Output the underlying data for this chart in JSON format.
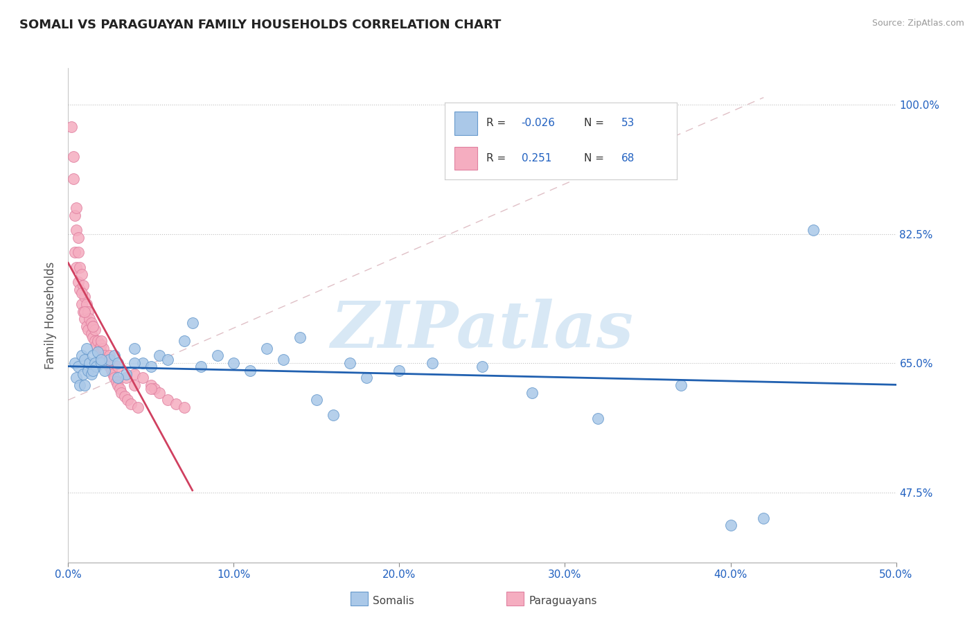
{
  "title": "SOMALI VS PARAGUAYAN FAMILY HOUSEHOLDS CORRELATION CHART",
  "source": "Source: ZipAtlas.com",
  "ylabel": "Family Households",
  "xmin": 0.0,
  "xmax": 50.0,
  "ymin": 38.0,
  "ymax": 105.0,
  "yticks": [
    47.5,
    65.0,
    82.5,
    100.0
  ],
  "xticks": [
    0.0,
    10.0,
    20.0,
    30.0,
    40.0,
    50.0
  ],
  "xtick_labels": [
    "0.0%",
    "10.0%",
    "20.0%",
    "30.0%",
    "40.0%",
    "50.0%"
  ],
  "ytick_labels": [
    "47.5%",
    "65.0%",
    "82.5%",
    "100.0%"
  ],
  "somali_color": "#aac8e8",
  "paraguayan_color": "#f5adc0",
  "somali_edge_color": "#6699cc",
  "paraguayan_edge_color": "#e080a0",
  "somali_line_color": "#2060b0",
  "paraguayan_line_color": "#d04060",
  "diagonal_color": "#d8b0b8",
  "legend_text_color": "#2060c0",
  "axis_tick_color": "#2060c0",
  "R_somali": "-0.026",
  "N_somali": "53",
  "R_paraguayan": "0.251",
  "N_paraguayan": "68",
  "watermark": "ZIPatlas",
  "watermark_color": "#d8e8f5",
  "somali_x": [
    0.4,
    0.5,
    0.6,
    0.7,
    0.8,
    0.9,
    1.0,
    1.1,
    1.2,
    1.3,
    1.4,
    1.5,
    1.6,
    1.7,
    1.8,
    2.0,
    2.2,
    2.5,
    2.8,
    3.0,
    3.5,
    4.0,
    4.5,
    5.0,
    5.5,
    6.0,
    7.0,
    7.5,
    8.0,
    9.0,
    10.0,
    11.0,
    12.0,
    13.0,
    14.0,
    15.0,
    16.0,
    17.0,
    18.0,
    20.0,
    22.0,
    25.0,
    28.0,
    32.0,
    37.0,
    40.0,
    42.0,
    45.0,
    1.0,
    1.5,
    2.0,
    3.0,
    4.0
  ],
  "somali_y": [
    65.0,
    63.0,
    64.5,
    62.0,
    66.0,
    63.5,
    65.5,
    67.0,
    64.0,
    65.0,
    63.5,
    66.0,
    65.0,
    64.5,
    66.5,
    65.0,
    64.0,
    65.5,
    66.0,
    65.0,
    63.5,
    67.0,
    65.0,
    64.5,
    66.0,
    65.5,
    68.0,
    70.5,
    64.5,
    66.0,
    65.0,
    64.0,
    67.0,
    65.5,
    68.5,
    60.0,
    58.0,
    65.0,
    63.0,
    64.0,
    65.0,
    64.5,
    61.0,
    57.5,
    62.0,
    43.0,
    44.0,
    83.0,
    62.0,
    64.0,
    65.5,
    63.0,
    65.0
  ],
  "paraguayan_x": [
    0.2,
    0.3,
    0.4,
    0.4,
    0.5,
    0.5,
    0.6,
    0.6,
    0.7,
    0.7,
    0.8,
    0.8,
    0.9,
    0.9,
    1.0,
    1.0,
    1.1,
    1.1,
    1.2,
    1.2,
    1.3,
    1.4,
    1.4,
    1.5,
    1.5,
    1.6,
    1.6,
    1.7,
    1.8,
    1.9,
    2.0,
    2.0,
    2.1,
    2.2,
    2.3,
    2.4,
    2.5,
    2.6,
    2.7,
    2.8,
    2.9,
    3.0,
    3.1,
    3.2,
    3.4,
    3.6,
    3.8,
    4.0,
    4.2,
    4.5,
    5.0,
    5.2,
    5.5,
    6.0,
    6.5,
    7.0,
    0.3,
    0.5,
    0.6,
    0.8,
    1.0,
    1.5,
    2.0,
    2.5,
    3.0,
    3.5,
    4.0,
    5.0
  ],
  "paraguayan_y": [
    97.0,
    90.0,
    80.0,
    85.0,
    83.0,
    78.0,
    80.0,
    76.0,
    78.0,
    75.0,
    77.0,
    73.0,
    75.5,
    72.0,
    74.0,
    71.0,
    73.0,
    70.0,
    72.0,
    69.5,
    71.0,
    69.0,
    70.5,
    68.5,
    70.0,
    68.0,
    69.5,
    67.5,
    68.0,
    67.0,
    67.5,
    66.5,
    67.0,
    66.0,
    65.5,
    65.0,
    64.5,
    64.0,
    63.5,
    63.0,
    62.5,
    62.0,
    61.5,
    61.0,
    60.5,
    60.0,
    59.5,
    63.5,
    59.0,
    63.0,
    62.0,
    61.5,
    61.0,
    60.0,
    59.5,
    59.0,
    93.0,
    86.0,
    82.0,
    74.5,
    72.0,
    70.0,
    68.0,
    66.0,
    64.5,
    63.0,
    62.0,
    61.5
  ]
}
